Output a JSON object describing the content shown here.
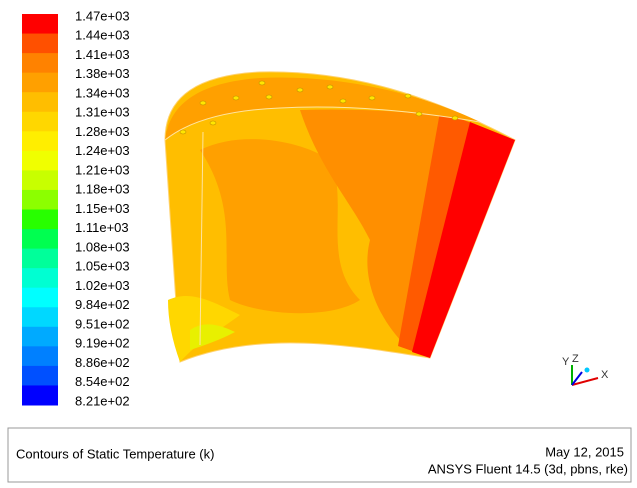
{
  "legend": {
    "labels": [
      "1.47e+03",
      "1.44e+03",
      "1.41e+03",
      "1.38e+03",
      "1.34e+03",
      "1.31e+03",
      "1.28e+03",
      "1.24e+03",
      "1.21e+03",
      "1.18e+03",
      "1.15e+03",
      "1.11e+03",
      "1.08e+03",
      "1.05e+03",
      "1.02e+03",
      "9.84e+02",
      "9.51e+02",
      "9.19e+02",
      "8.86e+02",
      "8.54e+02",
      "8.21e+02"
    ],
    "colors": [
      "#ff0000",
      "#ff5000",
      "#ff8200",
      "#ffa000",
      "#ffbe00",
      "#ffd700",
      "#ffee00",
      "#f0ff00",
      "#c8ff00",
      "#8cff00",
      "#28ff00",
      "#00ff50",
      "#00ff9a",
      "#00ffd2",
      "#00ffff",
      "#00d8ff",
      "#00aaff",
      "#0080ff",
      "#0050ff",
      "#0000ff"
    ]
  },
  "triad": {
    "y": "Y",
    "z": "Z",
    "x": "X"
  },
  "footer": {
    "title": "Contours of Static Temperature (k)",
    "date": "May 12, 2015",
    "software": "ANSYS Fluent 14.5 (3d, pbns, rke)"
  }
}
